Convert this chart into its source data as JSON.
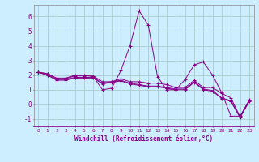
{
  "xlabel": "Windchill (Refroidissement éolien,°C)",
  "background_color": "#cceeff",
  "grid_color": "#aacccc",
  "line_color": "#880088",
  "ylim": [
    -1.5,
    6.8
  ],
  "xlim": [
    -0.5,
    23.5
  ],
  "yticks": [
    -1,
    0,
    1,
    2,
    3,
    4,
    5,
    6
  ],
  "xticks": [
    0,
    1,
    2,
    3,
    4,
    5,
    6,
    7,
    8,
    9,
    10,
    11,
    12,
    13,
    14,
    15,
    16,
    17,
    18,
    19,
    20,
    21,
    22,
    23
  ],
  "series": [
    [
      2.2,
      2.1,
      1.8,
      1.8,
      2.0,
      2.0,
      1.9,
      1.0,
      1.1,
      2.3,
      4.0,
      6.4,
      5.4,
      1.9,
      1.0,
      1.0,
      1.7,
      2.7,
      2.9,
      2.0,
      0.8,
      -0.8,
      -0.8,
      0.3
    ],
    [
      2.2,
      2.1,
      1.7,
      1.7,
      1.85,
      1.85,
      1.85,
      1.45,
      1.55,
      1.65,
      1.45,
      1.35,
      1.25,
      1.25,
      1.15,
      1.05,
      1.05,
      1.55,
      1.05,
      0.95,
      0.45,
      0.25,
      -0.85,
      0.25
    ],
    [
      2.2,
      2.0,
      1.75,
      1.75,
      1.95,
      1.95,
      1.95,
      1.55,
      1.55,
      1.75,
      1.55,
      1.55,
      1.45,
      1.45,
      1.35,
      1.15,
      1.15,
      1.65,
      1.15,
      1.15,
      0.75,
      0.45,
      -0.85,
      0.25
    ],
    [
      2.2,
      2.0,
      1.65,
      1.65,
      1.8,
      1.8,
      1.8,
      1.4,
      1.5,
      1.6,
      1.4,
      1.3,
      1.2,
      1.2,
      1.1,
      1.0,
      1.0,
      1.5,
      1.0,
      0.9,
      0.4,
      0.2,
      -0.9,
      0.2
    ]
  ]
}
